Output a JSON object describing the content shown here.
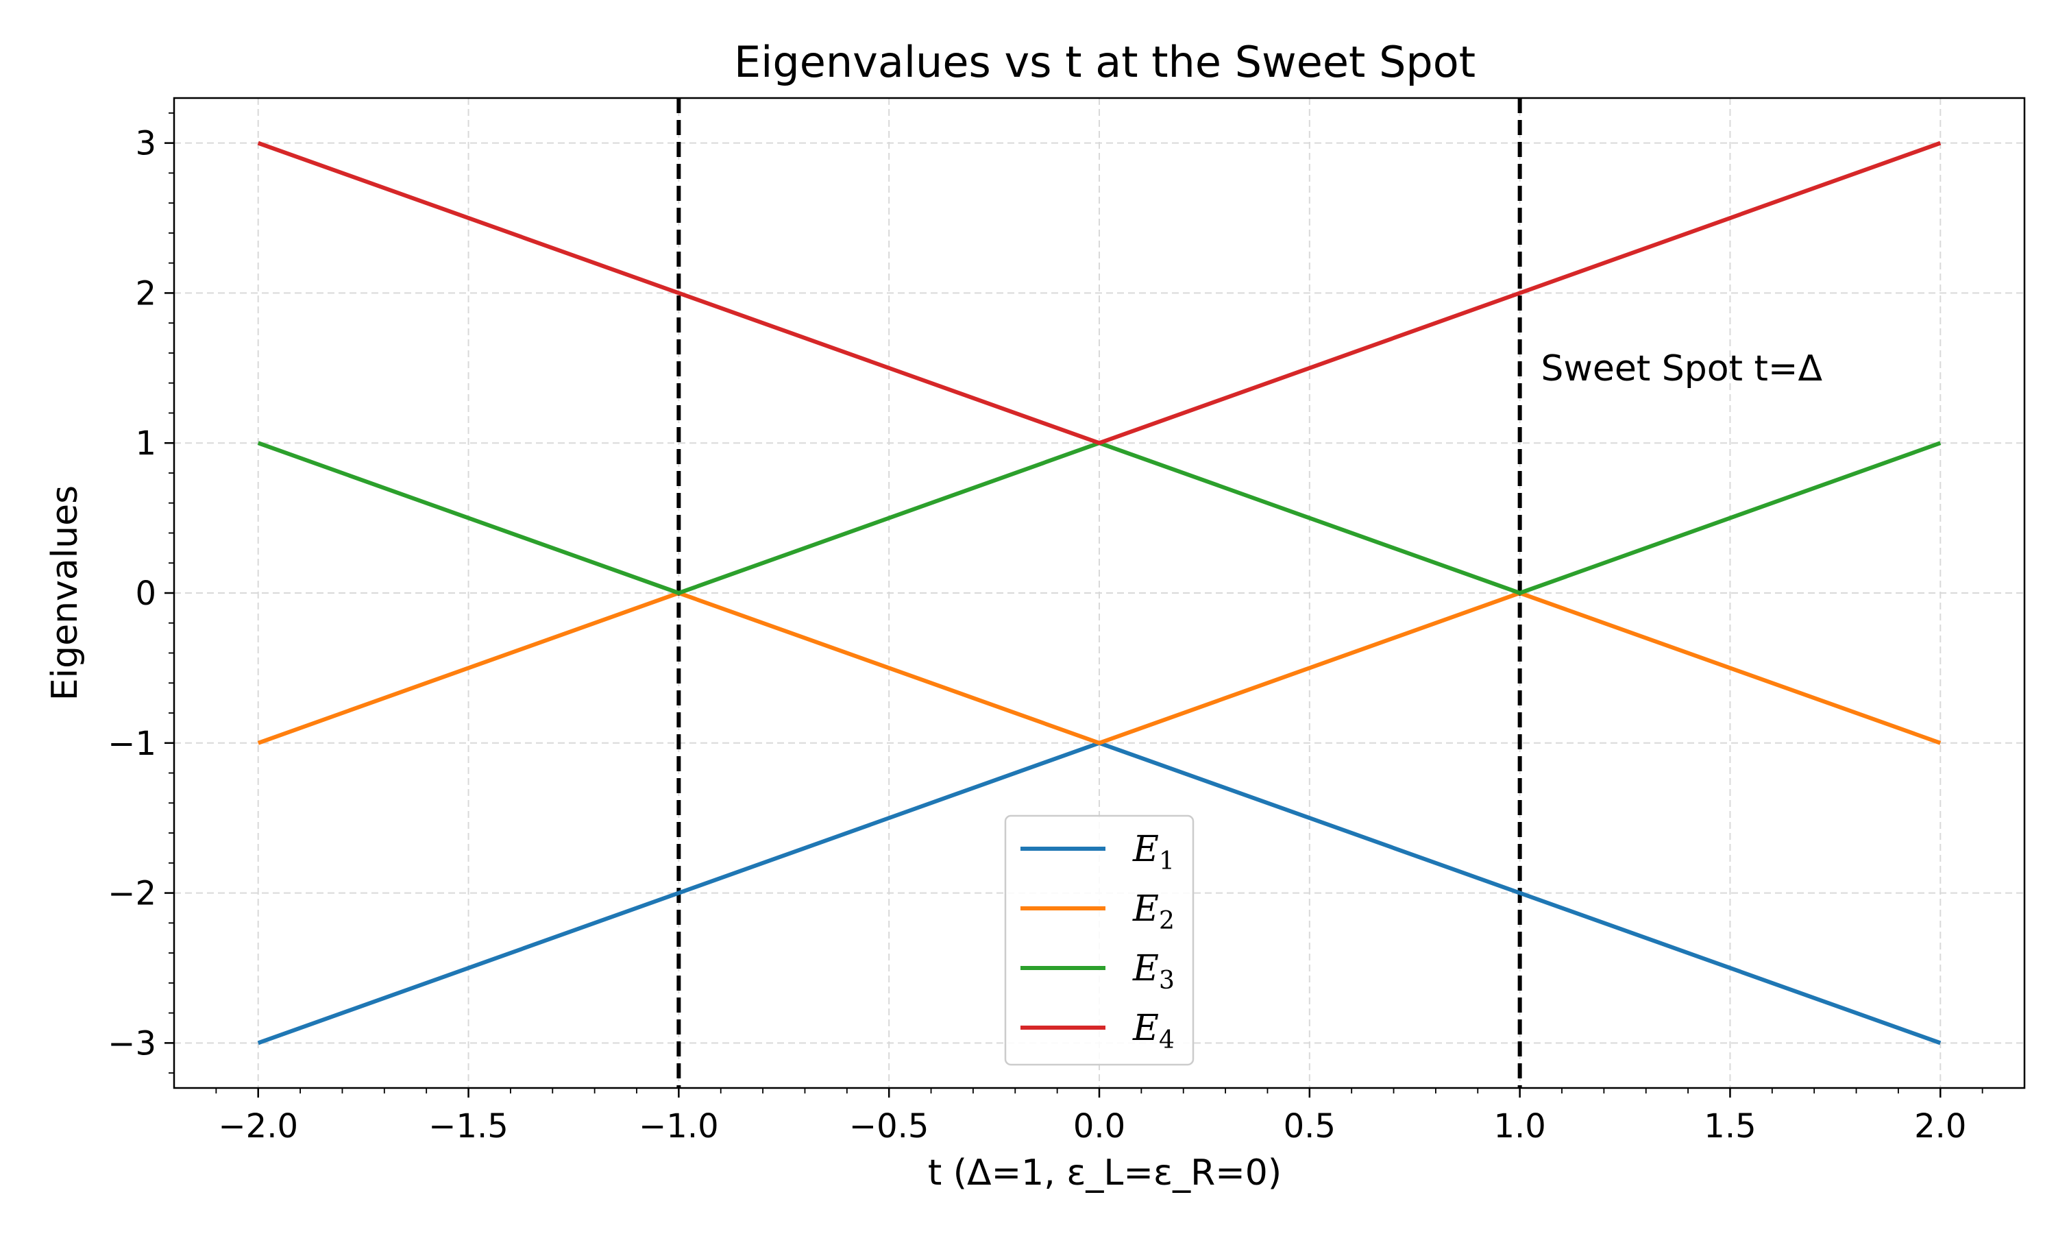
{
  "chart_data": {
    "type": "line",
    "title": "Eigenvalues vs t at the Sweet Spot",
    "xlabel": "t (Δ=1, ε_L=ε_R=0)",
    "ylabel": "Eigenvalues",
    "xlim": [
      -2.2,
      2.2
    ],
    "ylim": [
      -3.3,
      3.3
    ],
    "grid": true,
    "x_ticks": [
      -2.0,
      -1.5,
      -1.0,
      -0.5,
      0.0,
      0.5,
      1.0,
      1.5,
      2.0
    ],
    "x_tick_labels": [
      "−2.0",
      "−1.5",
      "−1.0",
      "−0.5",
      "0.0",
      "0.5",
      "1.0",
      "1.5",
      "2.0"
    ],
    "y_ticks": [
      -3,
      -2,
      -1,
      0,
      1,
      2,
      3
    ],
    "y_tick_labels": [
      "−3",
      "−2",
      "−1",
      "0",
      "1",
      "2",
      "3"
    ],
    "x": [
      -2.0,
      -1.0,
      0.0,
      1.0,
      2.0
    ],
    "series": [
      {
        "name": "E",
        "subscript": "1",
        "color": "#1f77b4",
        "values": [
          -3,
          -2,
          -1,
          -2,
          -3
        ]
      },
      {
        "name": "E",
        "subscript": "2",
        "color": "#ff7f0e",
        "values": [
          -1,
          0,
          -1,
          0,
          -1
        ]
      },
      {
        "name": "E",
        "subscript": "3",
        "color": "#2ca02c",
        "values": [
          1,
          0,
          1,
          0,
          1
        ]
      },
      {
        "name": "E",
        "subscript": "4",
        "color": "#d62728",
        "values": [
          3,
          2,
          1,
          2,
          3
        ]
      }
    ],
    "vlines": [
      {
        "x": -1.0,
        "style": "dashed",
        "color": "#000000"
      },
      {
        "x": 1.0,
        "style": "dashed",
        "color": "#000000"
      }
    ],
    "annotation": {
      "text": "Sweet Spot t=Δ",
      "x": 1.05,
      "y": 1.5
    },
    "legend_position": "bottom-center"
  }
}
